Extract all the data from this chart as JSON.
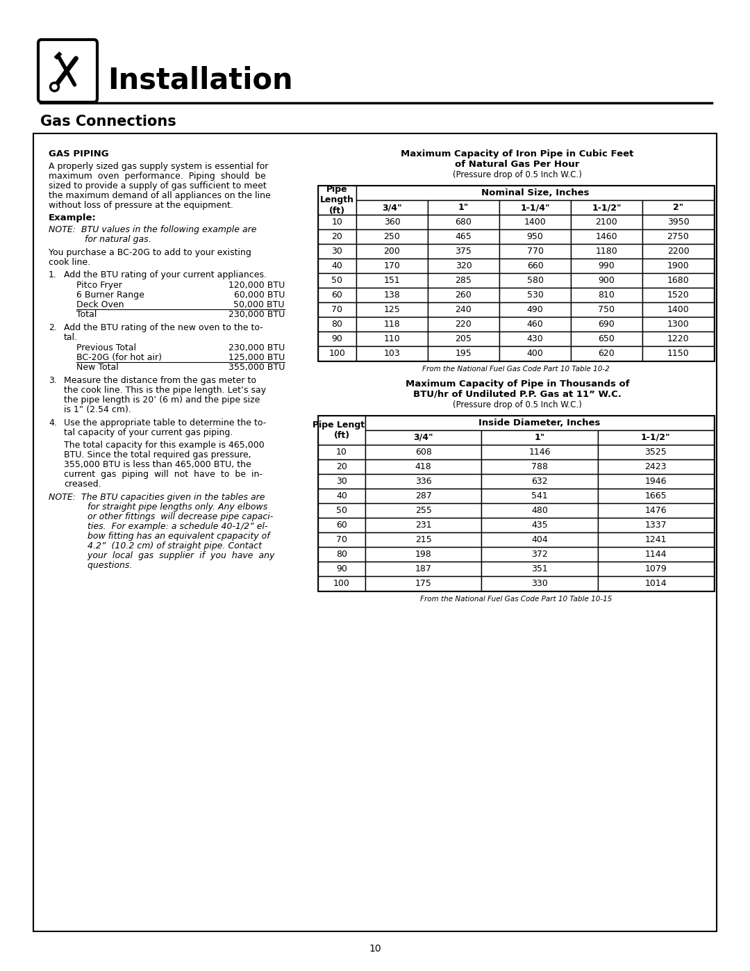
{
  "page_title": "Installation",
  "section_title": "Gas Connections",
  "page_number": "10",
  "table1": {
    "title_line1": "Maximum Capacity of Iron Pipe in Cubic Feet",
    "title_line2": "of Natural Gas Per Hour",
    "title_line3": "(Pressure drop of 0.5 Inch W.C.)",
    "col_header_span": "Nominal Size, Inches",
    "col_headers": [
      "3/4\"",
      "1\"",
      "1-1/4\"",
      "1-1/2\"",
      "2\""
    ],
    "rows": [
      [
        10,
        360,
        680,
        1400,
        2100,
        3950
      ],
      [
        20,
        250,
        465,
        950,
        1460,
        2750
      ],
      [
        30,
        200,
        375,
        770,
        1180,
        2200
      ],
      [
        40,
        170,
        320,
        660,
        990,
        1900
      ],
      [
        50,
        151,
        285,
        580,
        900,
        1680
      ],
      [
        60,
        138,
        260,
        530,
        810,
        1520
      ],
      [
        70,
        125,
        240,
        490,
        750,
        1400
      ],
      [
        80,
        118,
        220,
        460,
        690,
        1300
      ],
      [
        90,
        110,
        205,
        430,
        650,
        1220
      ],
      [
        100,
        103,
        195,
        400,
        620,
        1150
      ]
    ],
    "footnote": "From the National Fuel Gas Code Part 10 Table 10-2"
  },
  "table2": {
    "title_line1": "Maximum Capacity of Pipe in Thousands of",
    "title_line2": "BTU/hr of Undiluted P.P. Gas at 11” W.C.",
    "title_line3": "(Pressure drop of 0.5 Inch W.C.)",
    "col_header_span": "Inside Diameter, Inches",
    "col_headers": [
      "3/4\"",
      "1\"",
      "1-1/2\""
    ],
    "rows": [
      [
        10,
        608,
        1146,
        3525
      ],
      [
        20,
        418,
        788,
        2423
      ],
      [
        30,
        336,
        632,
        1946
      ],
      [
        40,
        287,
        541,
        1665
      ],
      [
        50,
        255,
        480,
        1476
      ],
      [
        60,
        231,
        435,
        1337
      ],
      [
        70,
        215,
        404,
        1241
      ],
      [
        80,
        198,
        372,
        1144
      ],
      [
        90,
        187,
        351,
        1079
      ],
      [
        100,
        175,
        330,
        1014
      ]
    ],
    "footnote": "From the National Fuel Gas Code Part 10 Table 10-15"
  }
}
